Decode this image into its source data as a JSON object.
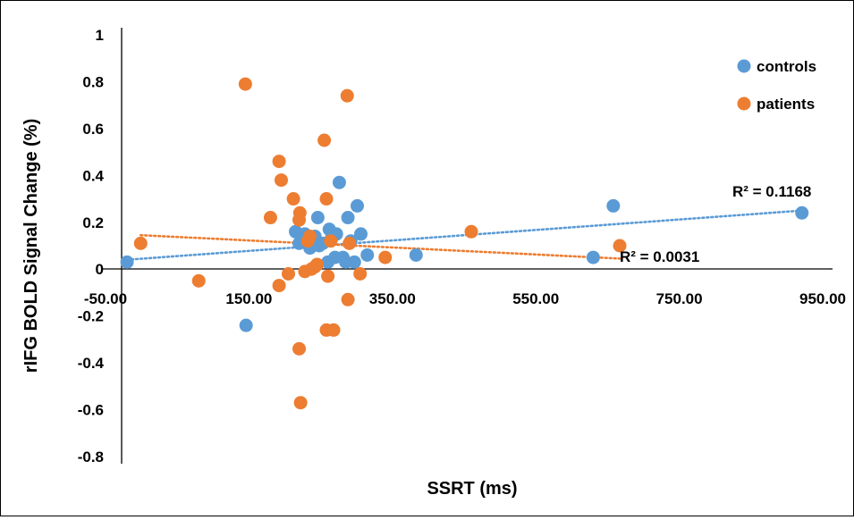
{
  "chart_data": {
    "type": "scatter",
    "xlabel": "SSRT (ms)",
    "ylabel": "rIFG BOLD Signal Change (%)",
    "xlim": [
      -50,
      950
    ],
    "ylim": [
      -0.8,
      1
    ],
    "x_ticks": [
      "-50.00",
      "150.00",
      "350.00",
      "550.00",
      "750.00",
      "950.00"
    ],
    "y_ticks": [
      "1",
      "0.8",
      "0.6",
      "0.4",
      "0.2",
      "0",
      "-0.2",
      "-0.4",
      "-0.6",
      "-0.8"
    ],
    "grid": false,
    "legend_position": "top-right",
    "series": [
      {
        "name": "controls",
        "color": "#5B9BD5",
        "points": [
          [
            -20,
            0.03
          ],
          [
            146,
            -0.24
          ],
          [
            215,
            0.16
          ],
          [
            220,
            0.11
          ],
          [
            228,
            0.15
          ],
          [
            235,
            0.09
          ],
          [
            238,
            0.12
          ],
          [
            242,
            0.14
          ],
          [
            246,
            0.22
          ],
          [
            248,
            0.1
          ],
          [
            253,
            0.11
          ],
          [
            260,
            0.03
          ],
          [
            262,
            0.17
          ],
          [
            265,
            0.13
          ],
          [
            270,
            0.05
          ],
          [
            272,
            0.15
          ],
          [
            276,
            0.37
          ],
          [
            281,
            0.05
          ],
          [
            285,
            0.03
          ],
          [
            288,
            0.22
          ],
          [
            292,
            0.12
          ],
          [
            297,
            0.03
          ],
          [
            301,
            0.27
          ],
          [
            306,
            0.15
          ],
          [
            315,
            0.06
          ],
          [
            383,
            0.06
          ],
          [
            630,
            0.05
          ],
          [
            658,
            0.27
          ],
          [
            921,
            0.24
          ]
        ]
      },
      {
        "name": "patients",
        "color": "#ED7D31",
        "points": [
          [
            -1,
            0.11
          ],
          [
            80,
            -0.05
          ],
          [
            145,
            0.79
          ],
          [
            180,
            0.22
          ],
          [
            192,
            -0.07
          ],
          [
            192,
            0.46
          ],
          [
            195,
            0.38
          ],
          [
            205,
            -0.02
          ],
          [
            212,
            0.3
          ],
          [
            220,
            -0.34
          ],
          [
            220,
            0.21
          ],
          [
            221,
            0.24
          ],
          [
            222,
            -0.57
          ],
          [
            228,
            -0.01
          ],
          [
            232,
            0.12
          ],
          [
            235,
            0.14
          ],
          [
            237,
            0.0
          ],
          [
            242,
            0.01
          ],
          [
            245,
            0.02
          ],
          [
            255,
            0.55
          ],
          [
            258,
            -0.26
          ],
          [
            258,
            0.3
          ],
          [
            260,
            -0.03
          ],
          [
            264,
            0.12
          ],
          [
            268,
            -0.26
          ],
          [
            287,
            0.74
          ],
          [
            288,
            -0.13
          ],
          [
            290,
            0.11
          ],
          [
            305,
            -0.02
          ],
          [
            340,
            0.05
          ],
          [
            460,
            0.16
          ],
          [
            667,
            0.1
          ]
        ]
      }
    ],
    "trendlines": [
      {
        "series": "controls",
        "type": "linear",
        "r2_label": "R² = 0.1168",
        "start": [
          -20,
          0.04
        ],
        "end": [
          921,
          0.25
        ]
      },
      {
        "series": "patients",
        "type": "linear",
        "r2_label": "R² = 0.0031",
        "start": [
          -1,
          0.145
        ],
        "end": [
          667,
          0.045
        ]
      }
    ]
  }
}
